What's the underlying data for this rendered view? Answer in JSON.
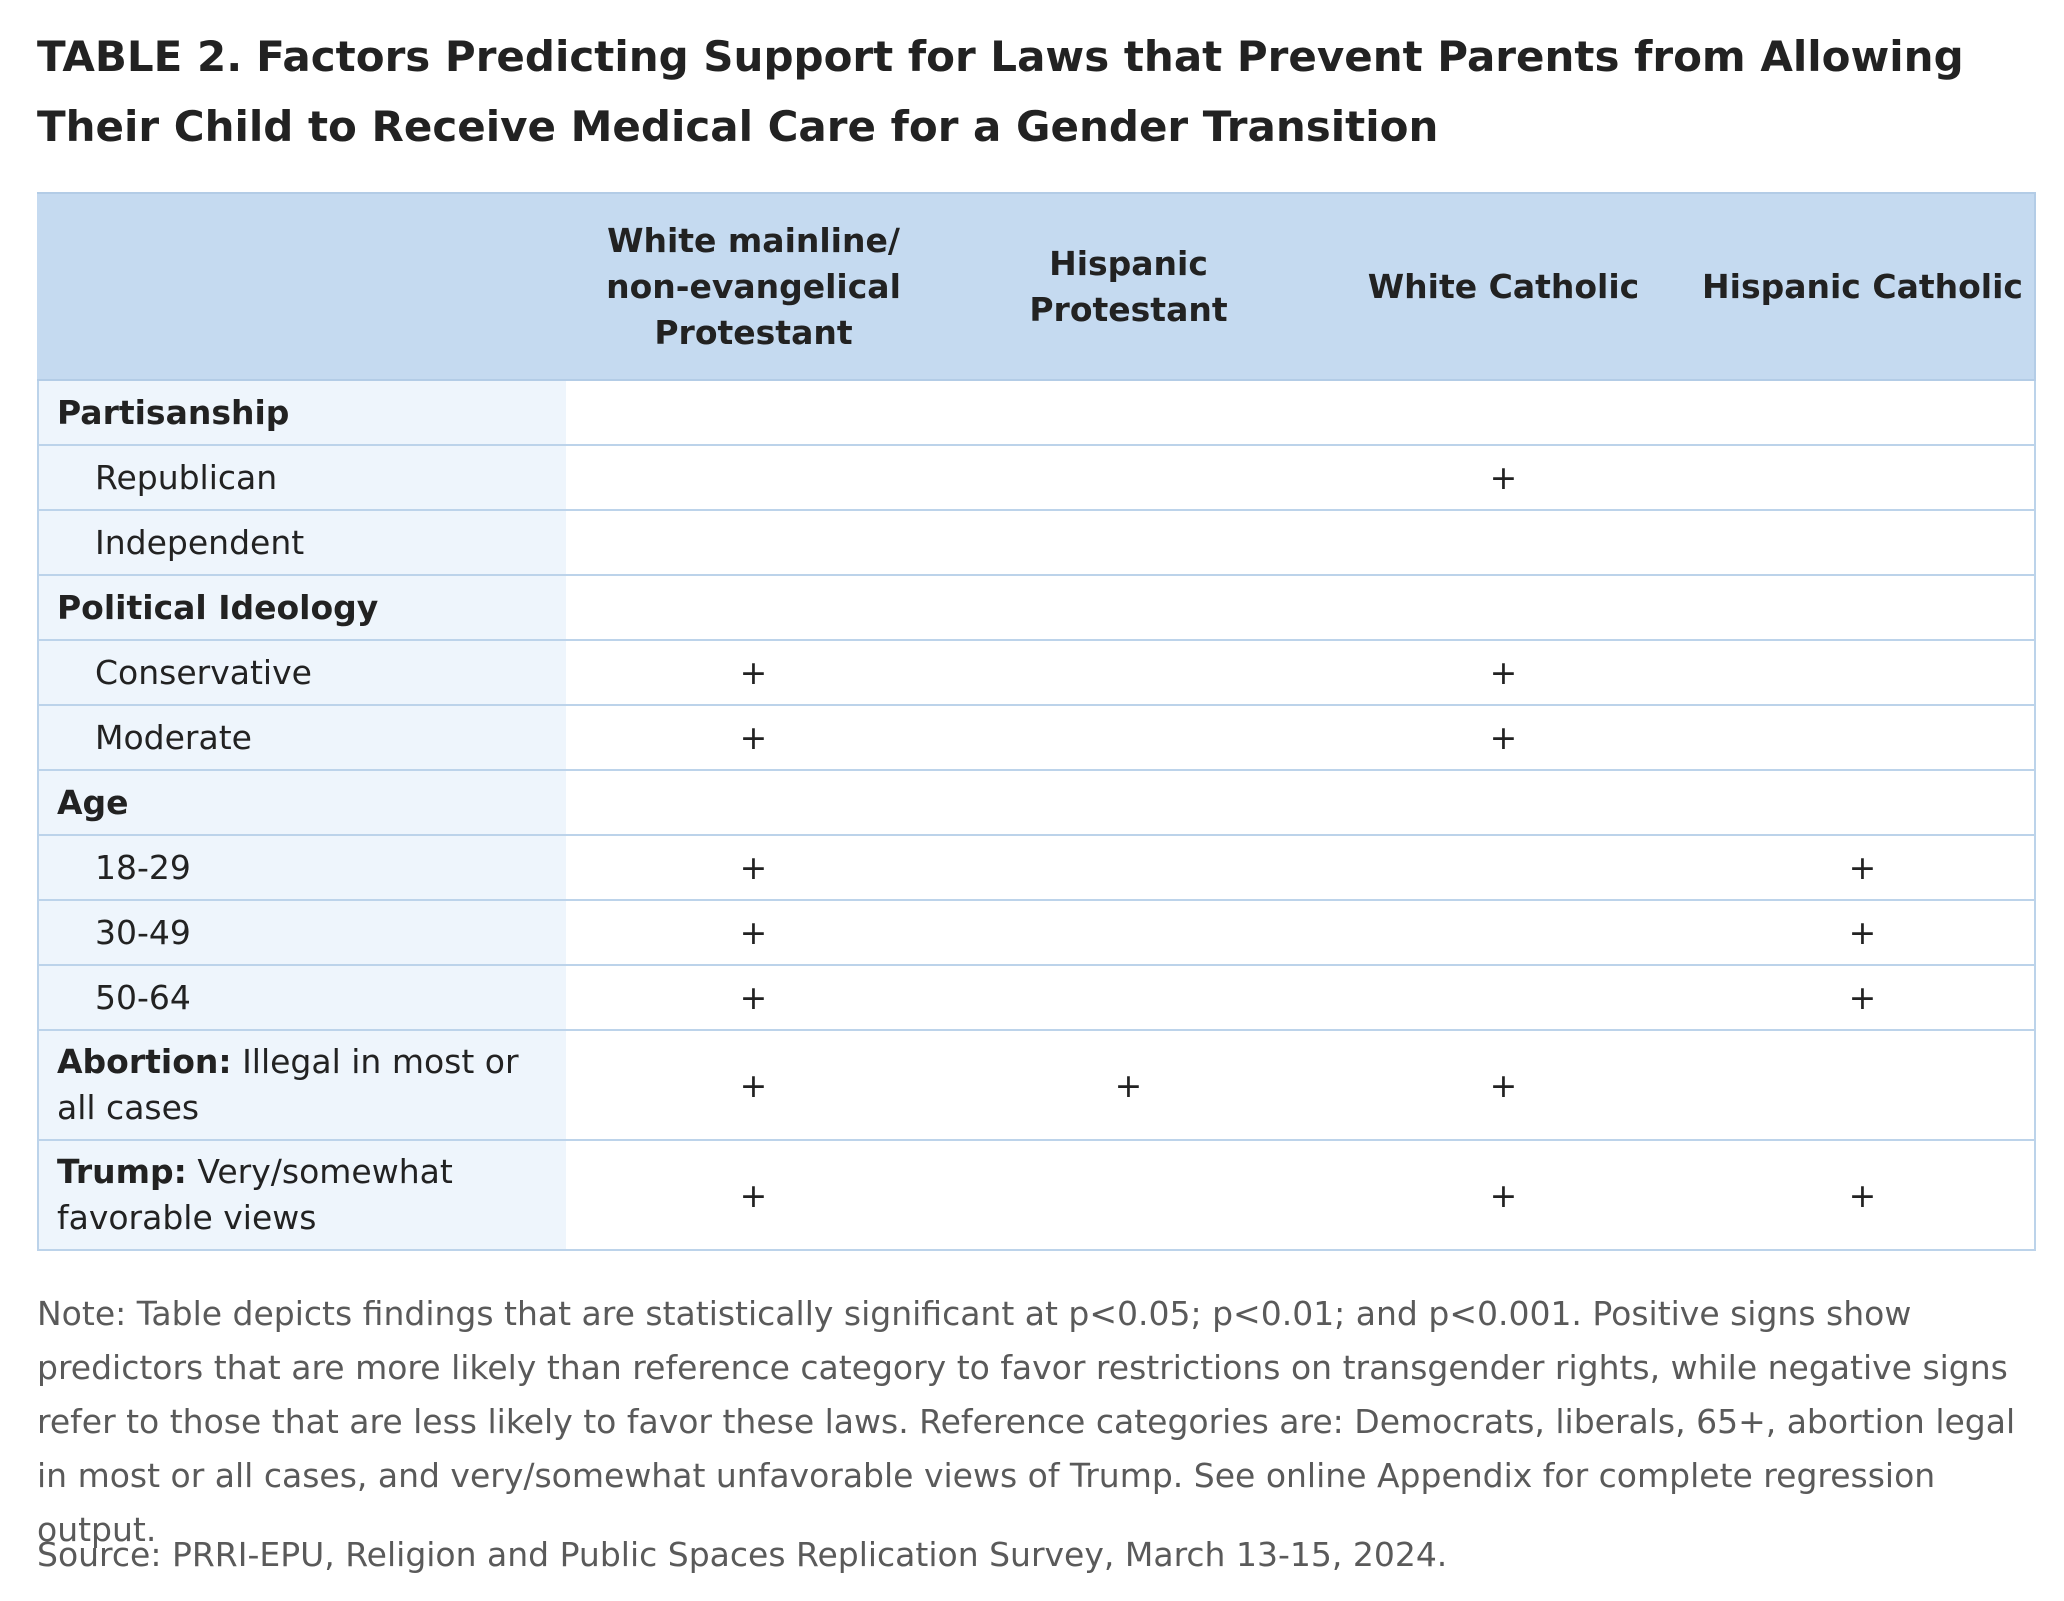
{
  "title": {
    "label": "TABLE 2.",
    "text": "Factors Predicting Support for Laws that Prevent Parents from Allowing Their Child to Receive Medical Care for a Gender Transition"
  },
  "table": {
    "columns": [
      "White mainline/ non-evangelical Protestant",
      "Hispanic Protestant",
      "White Catholic",
      "Hispanic Catholic"
    ],
    "rows": [
      {
        "type": "group",
        "label": "Partisanship",
        "values": [
          "",
          "",
          "",
          ""
        ]
      },
      {
        "type": "sub",
        "label": "Republican",
        "values": [
          "",
          "",
          "+",
          ""
        ]
      },
      {
        "type": "sub",
        "label": "Independent",
        "values": [
          "",
          "",
          "",
          ""
        ]
      },
      {
        "type": "group",
        "label": "Political Ideology",
        "values": [
          "",
          "",
          "",
          ""
        ]
      },
      {
        "type": "sub",
        "label": "Conservative",
        "values": [
          "+",
          "",
          "+",
          ""
        ]
      },
      {
        "type": "sub",
        "label": "Moderate",
        "values": [
          "+",
          "",
          "+",
          ""
        ]
      },
      {
        "type": "group",
        "label": "Age",
        "values": [
          "",
          "",
          "",
          ""
        ]
      },
      {
        "type": "sub",
        "label": "18-29",
        "values": [
          "+",
          "",
          "",
          "+"
        ]
      },
      {
        "type": "sub",
        "label": "30-49",
        "values": [
          "+",
          "",
          "",
          "+"
        ]
      },
      {
        "type": "sub",
        "label": "50-64",
        "values": [
          "+",
          "",
          "",
          "+"
        ]
      },
      {
        "type": "mixed",
        "label_bold": "Abortion:",
        "label_rest": "Illegal in most or all cases",
        "values": [
          "+",
          "+",
          "+",
          ""
        ]
      },
      {
        "type": "mixed",
        "label_bold": "Trump:",
        "label_rest": "Very/somewhat favorable views",
        "values": [
          "+",
          "",
          "+",
          "+"
        ]
      }
    ]
  },
  "note": "Note: Table depicts findings that are statistically significant at p<0.05; p<0.01; and p<0.001. Positive signs show predictors that are more likely than reference category to favor restrictions on transgender rights, while negative signs refer to those that are less likely to favor these laws. Reference categories are: Democrats, liberals, 65+, abortion legal in most or all cases, and very/somewhat unfavorable views of Trump. See online Appendix for complete regression output.",
  "source": "Source: PRRI-EPU, Religion and Public Spaces Replication Survey, March 13-15, 2024."
}
